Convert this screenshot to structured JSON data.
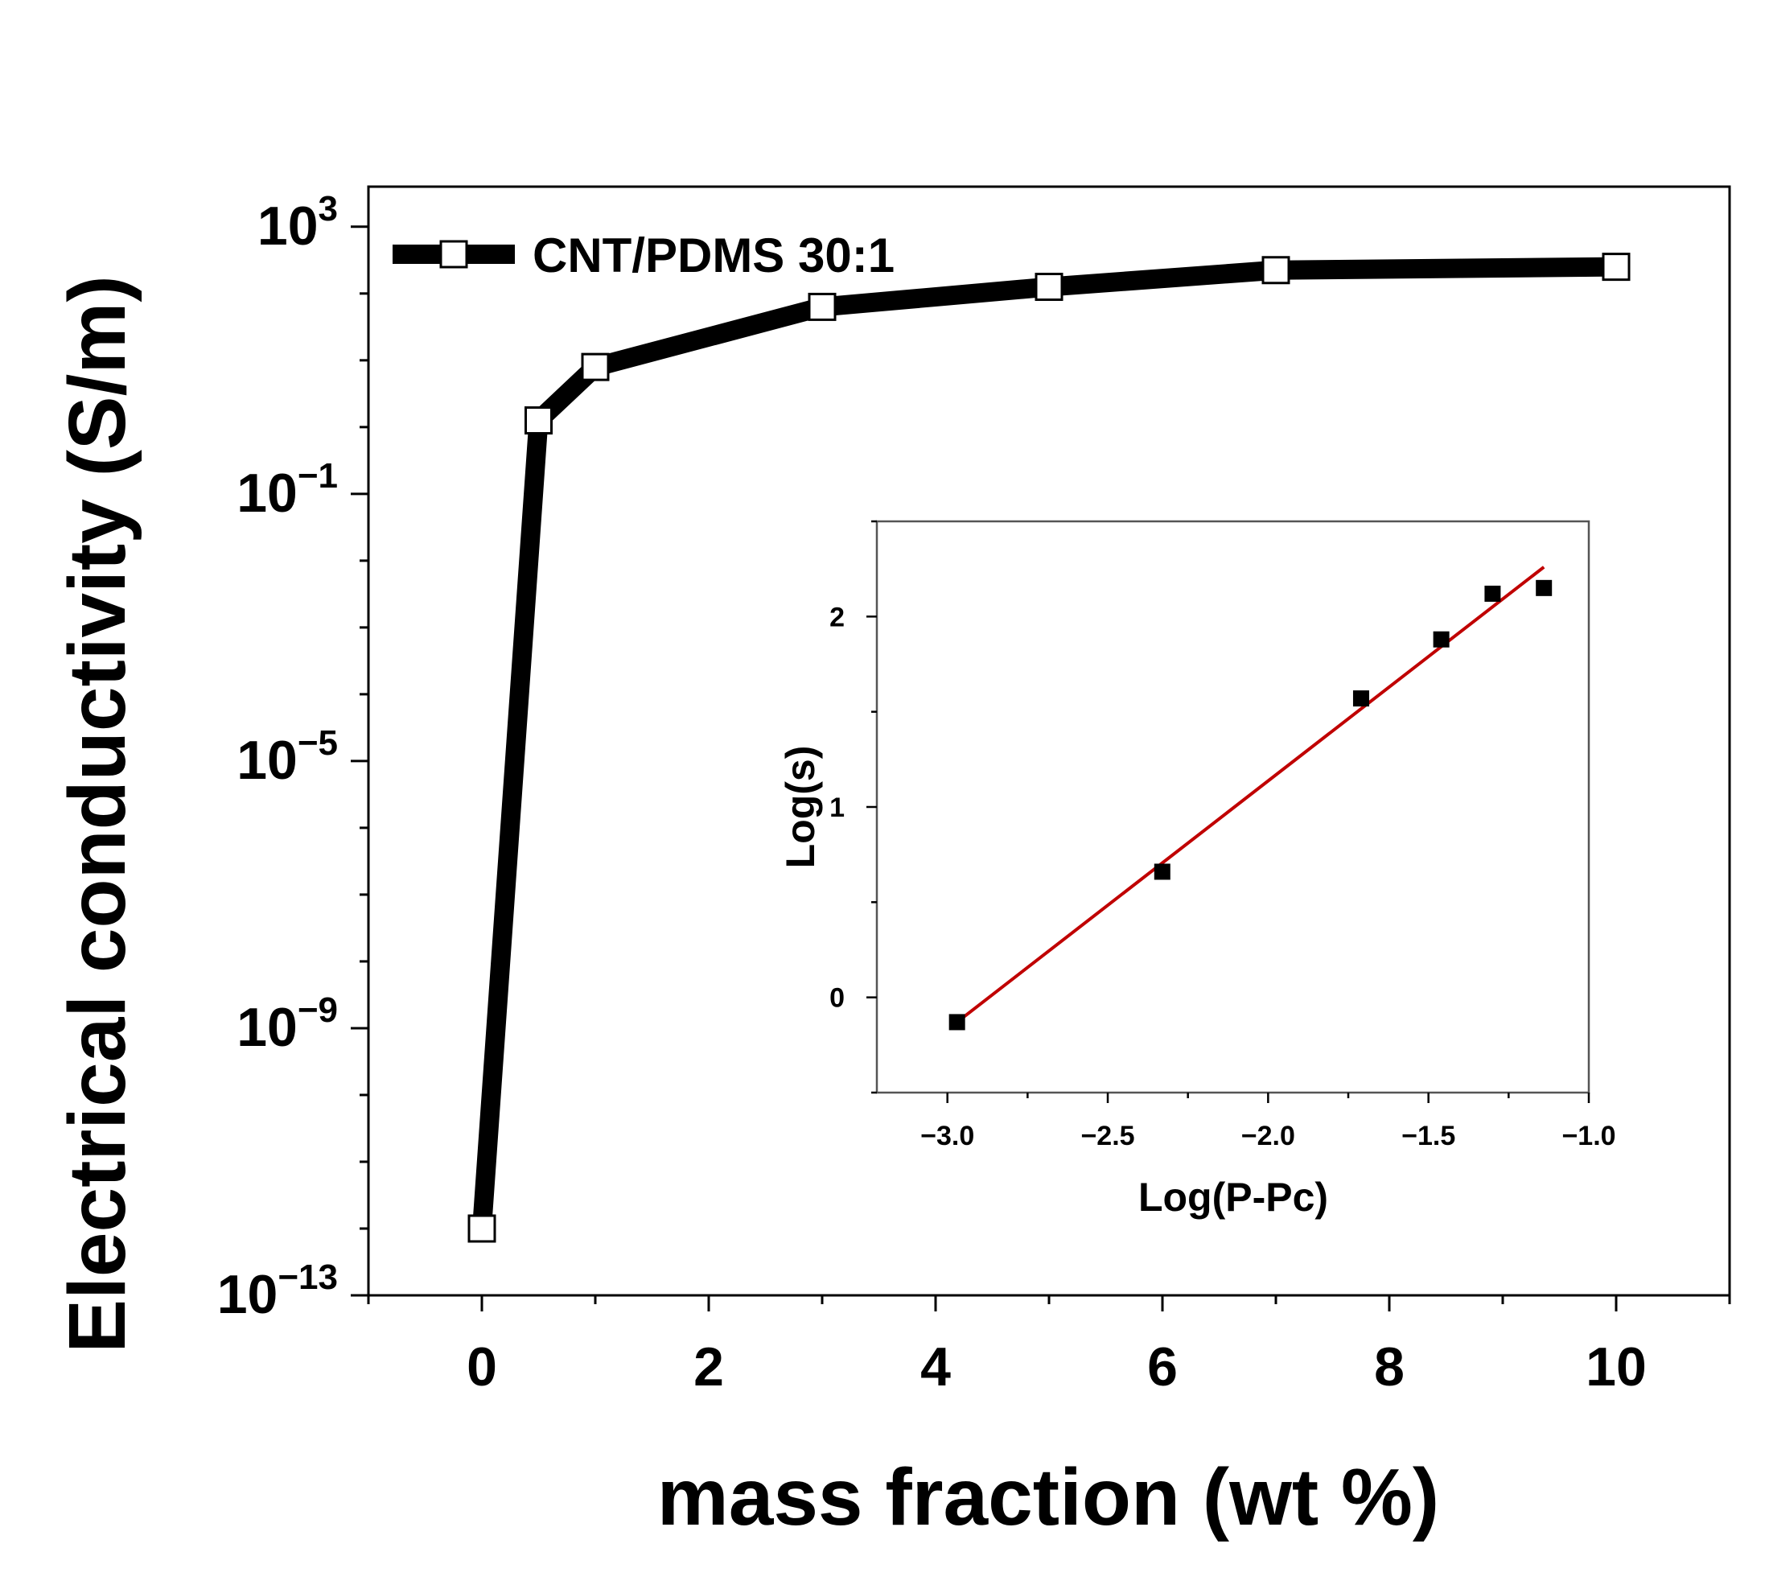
{
  "chart_data": [
    {
      "type": "line",
      "role": "main",
      "xlabel": "mass fraction (wt %)",
      "ylabel": "Electrical conductivity (S/m)",
      "yscale": "log",
      "xlim": [
        -1,
        11
      ],
      "ylim_exp": [
        -13,
        3.6
      ],
      "xticks": [
        {
          "value": 0,
          "label": "0"
        },
        {
          "value": 2,
          "label": "2"
        },
        {
          "value": 4,
          "label": "4"
        },
        {
          "value": 6,
          "label": "6"
        },
        {
          "value": 8,
          "label": "8"
        },
        {
          "value": 10,
          "label": "10"
        }
      ],
      "yticks": [
        {
          "exp": 3,
          "base": "10",
          "sup": "3"
        },
        {
          "exp": -1,
          "base": "10",
          "sup": "−1"
        },
        {
          "exp": -5,
          "base": "10",
          "sup": "−5"
        },
        {
          "exp": -9,
          "base": "10",
          "sup": "−9"
        },
        {
          "exp": -13,
          "base": "10",
          "sup": "−13"
        }
      ],
      "legend": {
        "position": "top-left",
        "label": "CNT/PDMS 30:1"
      },
      "series": [
        {
          "name": "CNT/PDMS 30:1",
          "x": [
            0,
            0.5,
            1,
            3,
            5,
            7,
            10
          ],
          "y_exp": [
            -12,
            0.1,
            0.9,
            1.8,
            2.1,
            2.35,
            2.4
          ]
        }
      ],
      "colors": {
        "line": "#000000",
        "marker_fill": "#ffffff"
      }
    },
    {
      "type": "scatter",
      "role": "inset",
      "xlabel": "Log(P-Pc)",
      "ylabel": "Log(s)",
      "xlim": [
        -3.22,
        -1.0
      ],
      "ylim": [
        -0.5,
        2.5
      ],
      "xticks": [
        {
          "value": -3.0,
          "label": "−3.0"
        },
        {
          "value": -2.5,
          "label": "−2.5"
        },
        {
          "value": -2.0,
          "label": "−2.0"
        },
        {
          "value": -1.5,
          "label": "−1.5"
        },
        {
          "value": -1.0,
          "label": "−1.0"
        }
      ],
      "yticks": [
        {
          "value": 0,
          "label": "0"
        },
        {
          "value": 1,
          "label": "1"
        },
        {
          "value": 2,
          "label": "2"
        }
      ],
      "points": {
        "x": [
          -2.97,
          -2.33,
          -1.71,
          -1.46,
          -1.3,
          -1.14
        ],
        "y": [
          -0.13,
          0.66,
          1.57,
          1.88,
          2.12,
          2.15
        ]
      },
      "fit_line": {
        "x": [
          -2.97,
          -1.14
        ],
        "y": [
          -0.13,
          2.26
        ]
      },
      "colors": {
        "points": "#000000",
        "fit": "#c00000"
      }
    }
  ]
}
